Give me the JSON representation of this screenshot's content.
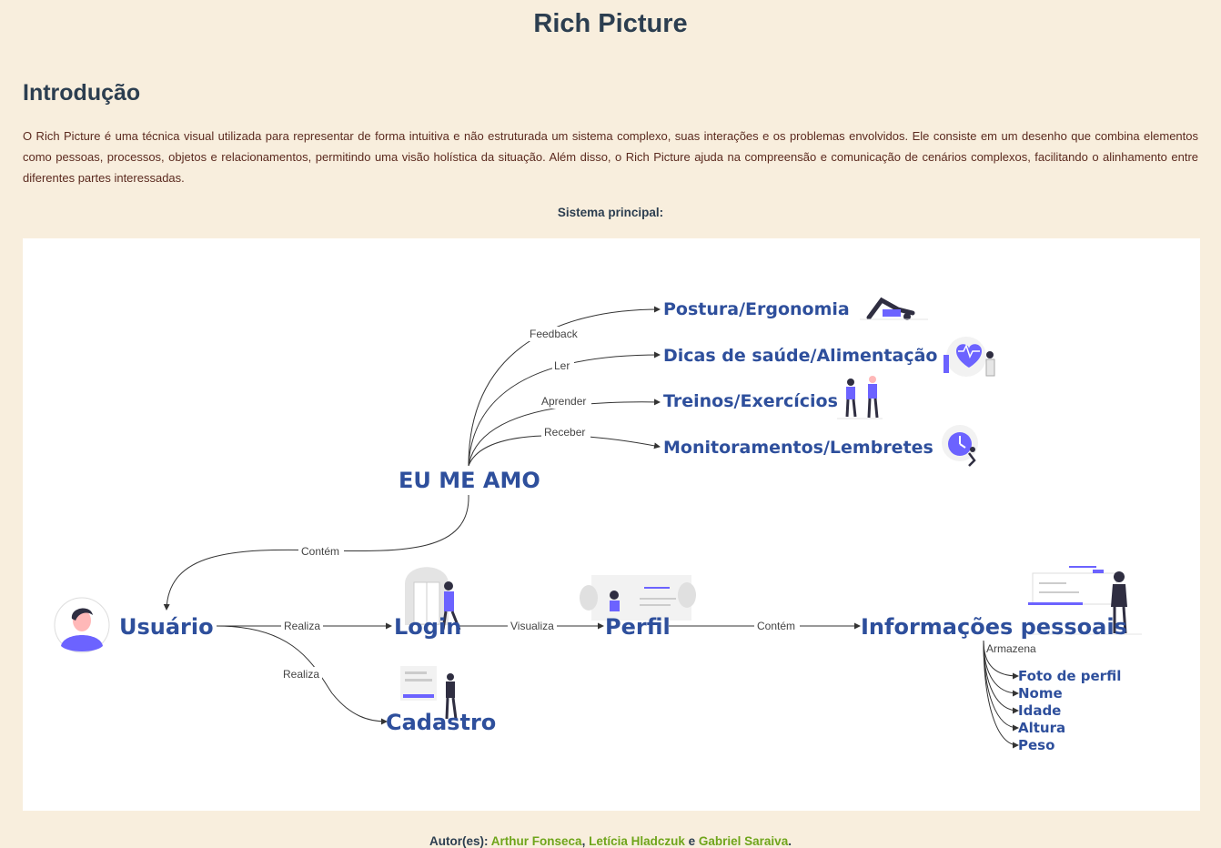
{
  "page": {
    "title": "Rich Picture",
    "intro_heading": "Introdução",
    "intro_text": "O Rich Picture é uma técnica visual utilizada para representar de forma intuitiva e não estruturada um sistema complexo, suas interações e os problemas envolvidos. Ele consiste em um desenho que combina elementos como pessoas, processos, objetos e relacionamentos, permitindo uma visão holística da situação. Além disso, o Rich Picture ajuda na compreensão e comunicação de cenários complexos, facilitando o alinhamento entre diferentes partes interessadas.",
    "diagram_caption": "Sistema principal:"
  },
  "diagram": {
    "nodes": {
      "usuario": "Usuário",
      "login": "Login",
      "cadastro": "Cadastro",
      "perfil": "Perfil",
      "informacoes": "Informações pessoais",
      "eu_me_amo": "EU ME AMO",
      "postura": "Postura/Ergonomia",
      "dicas": "Dicas de saúde/Alimentação",
      "treinos": "Treinos/Exercícios",
      "monitoramentos": "Monitoramentos/Lembretes",
      "foto": "Foto de perfil",
      "nome": "Nome",
      "idade": "Idade",
      "altura": "Altura",
      "peso": "Peso"
    },
    "edges": {
      "feedback": "Feedback",
      "ler": "Ler",
      "aprender": "Aprender",
      "receber": "Receber",
      "contem_app": "Contém",
      "realiza_login": "Realiza",
      "realiza_cadastro": "Realiza",
      "visualiza": "Visualiza",
      "contem_info": "Contém",
      "armazena": "Armazena"
    },
    "colors": {
      "node_text": "#2e4f9c",
      "accent": "#6c63ff",
      "dark": "#2f2e41",
      "skin": "#ffb8b8"
    }
  },
  "footer": {
    "prefix": "Autor(es): ",
    "author1": "Arthur Fonseca",
    "sep1": ", ",
    "author2": "Letícia Hladczuk",
    "sep2": " e ",
    "author3": "Gabriel Saraiva",
    "suffix": "."
  }
}
